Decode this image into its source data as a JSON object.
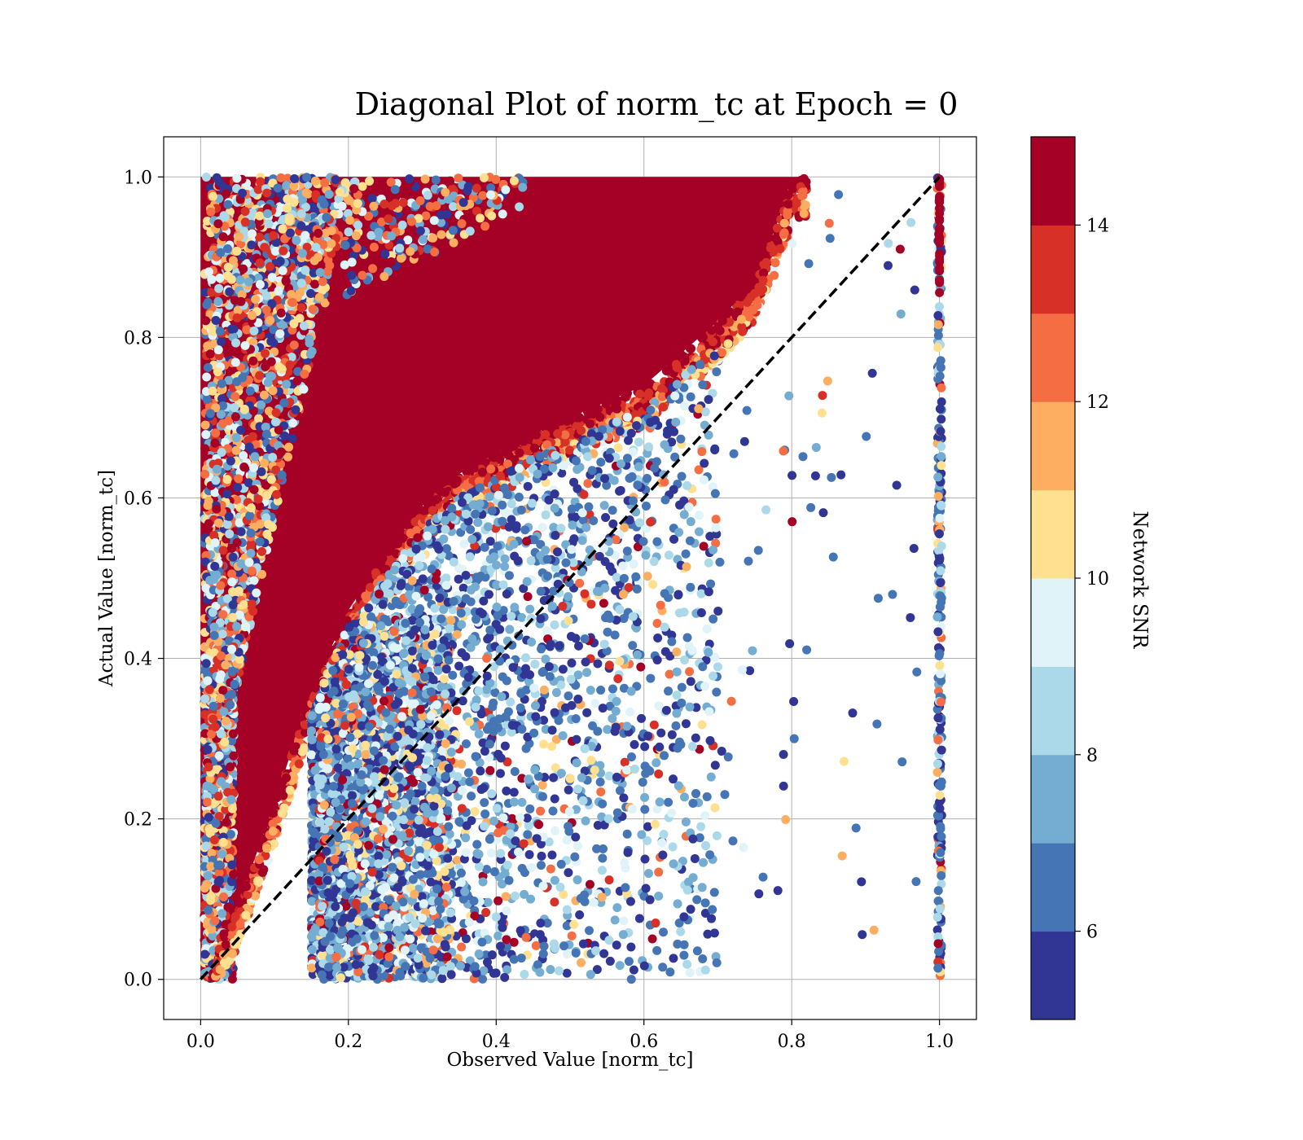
{
  "chart_data": {
    "type": "scatter",
    "title": "Diagonal Plot of norm_tc at Epoch = 0",
    "xlabel": "Observed Value [norm_tc]",
    "ylabel": "Actual Value [norm_tc]",
    "xlim": [
      -0.05,
      1.05
    ],
    "ylim": [
      -0.05,
      1.05
    ],
    "x_ticks": [
      "0.0",
      "0.2",
      "0.4",
      "0.6",
      "0.8",
      "1.0"
    ],
    "y_ticks": [
      "0.0",
      "0.2",
      "0.4",
      "0.6",
      "0.8",
      "1.0"
    ],
    "grid": true,
    "reference_line": {
      "style": "dashed",
      "color": "#000000",
      "from": [
        0,
        0
      ],
      "to": [
        1,
        1
      ]
    },
    "colorbar": {
      "label": "Network SNR",
      "range": [
        5,
        15
      ],
      "ticks": [
        "6",
        "8",
        "10",
        "12",
        "14"
      ],
      "colors": [
        "#313695",
        "#4575b4",
        "#74add1",
        "#abd9e9",
        "#e0f3f8",
        "#fee090",
        "#fdae61",
        "#f46d43",
        "#d73027",
        "#a50026"
      ]
    },
    "bands": [
      {
        "name": "high-snr-band",
        "snr": 15,
        "lower_edge": [
          [
            0.0,
            0.0
          ],
          [
            0.05,
            0.09
          ],
          [
            0.1,
            0.22
          ],
          [
            0.15,
            0.36
          ],
          [
            0.2,
            0.46
          ],
          [
            0.25,
            0.53
          ],
          [
            0.3,
            0.59
          ],
          [
            0.35,
            0.63
          ],
          [
            0.4,
            0.655
          ],
          [
            0.45,
            0.68
          ],
          [
            0.5,
            0.7
          ],
          [
            0.6,
            0.74
          ],
          [
            0.7,
            0.82
          ],
          [
            0.75,
            0.87
          ],
          [
            0.8,
            0.99
          ],
          [
            0.815,
            1.0
          ]
        ]
      },
      {
        "name": "scatter-cloud",
        "snr_range": [
          5,
          14
        ]
      }
    ],
    "edge_column": {
      "x": 1.0,
      "y_range": [
        0,
        1
      ]
    }
  }
}
